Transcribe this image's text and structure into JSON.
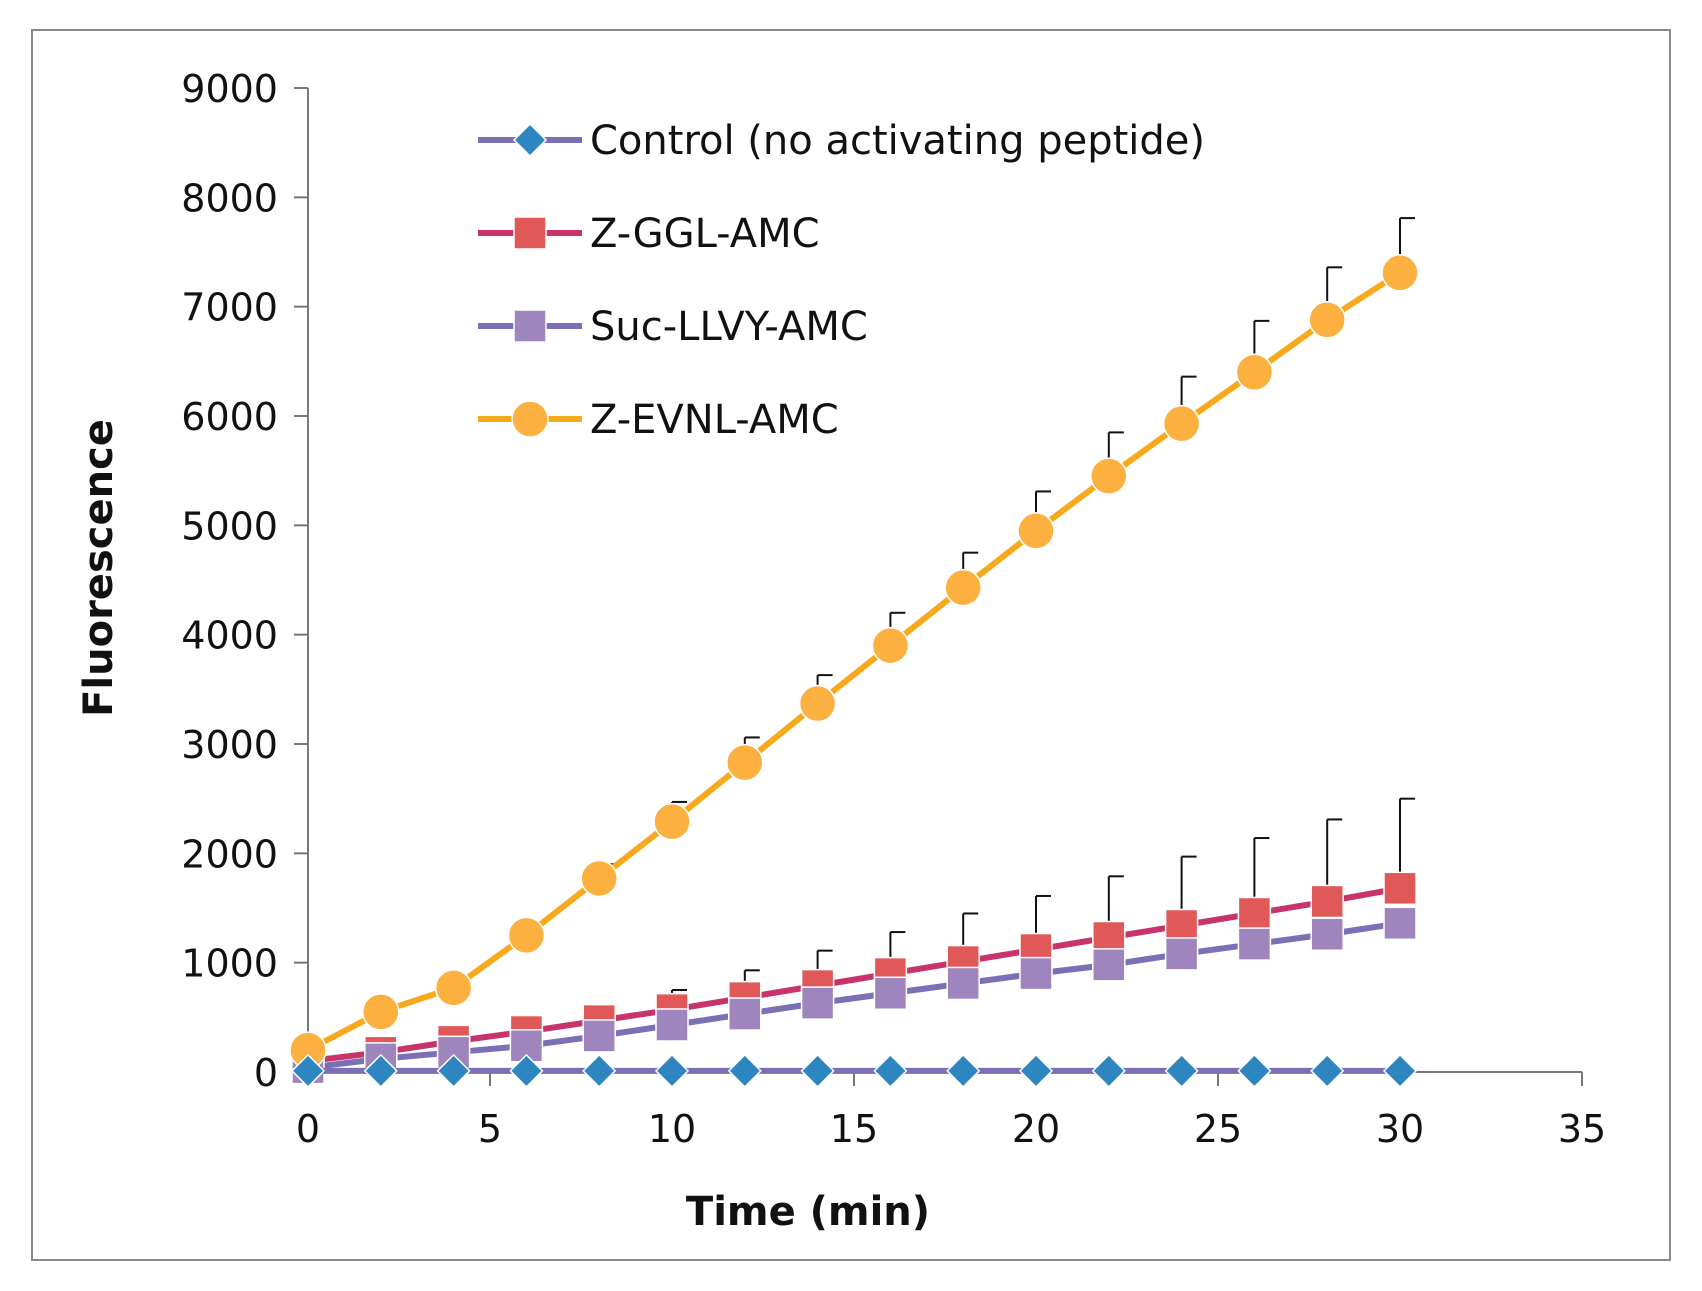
{
  "chart_data": {
    "type": "line",
    "title": "",
    "xlabel": "Time (min)",
    "ylabel": "Fluorescence",
    "xlim": [
      0,
      35
    ],
    "ylim": [
      0,
      9000
    ],
    "x_ticks": [
      0,
      5,
      10,
      15,
      20,
      25,
      30,
      35
    ],
    "y_ticks": [
      0,
      1000,
      2000,
      3000,
      4000,
      5000,
      6000,
      7000,
      8000,
      9000
    ],
    "x_tick_labels": [
      "0",
      "5",
      "10",
      "15",
      "20",
      "25",
      "30",
      "35"
    ],
    "y_tick_labels": [
      "0",
      "1000",
      "2000",
      "3000",
      "4000",
      "5000",
      "6000",
      "7000",
      "8000",
      "9000"
    ],
    "grid": false,
    "legend_position": "top-left inside",
    "x": [
      0,
      2,
      4,
      6,
      8,
      10,
      12,
      14,
      16,
      18,
      20,
      22,
      24,
      26,
      28,
      30
    ],
    "series": [
      {
        "name": "Control (no activating peptide)",
        "line_color": "#7B6FB5",
        "marker": "diamond",
        "marker_color": "#2E86C1",
        "values": [
          10,
          10,
          10,
          10,
          10,
          10,
          10,
          10,
          10,
          10,
          10,
          10,
          10,
          10,
          10,
          10
        ],
        "error": [
          0,
          0,
          0,
          0,
          0,
          0,
          0,
          0,
          0,
          0,
          0,
          0,
          0,
          0,
          0,
          0
        ]
      },
      {
        "name": "Z-GGL-AMC",
        "line_color": "#C8336B",
        "marker": "square",
        "marker_color": "#E05858",
        "values": [
          100,
          180,
          280,
          370,
          470,
          570,
          680,
          790,
          900,
          1010,
          1120,
          1230,
          1340,
          1450,
          1560,
          1680
        ],
        "error": [
          0,
          0,
          0,
          0,
          120,
          180,
          250,
          320,
          380,
          440,
          490,
          560,
          630,
          690,
          750,
          820
        ]
      },
      {
        "name": "Suc-LLVY-AMC",
        "line_color": "#7B6FB5",
        "marker": "square",
        "marker_color": "#9F85BD",
        "values": [
          40,
          120,
          180,
          240,
          330,
          430,
          530,
          630,
          720,
          810,
          900,
          980,
          1080,
          1170,
          1260,
          1360
        ],
        "error": [
          0,
          0,
          0,
          0,
          0,
          0,
          0,
          0,
          0,
          0,
          0,
          0,
          0,
          0,
          0,
          0
        ]
      },
      {
        "name": "Z-EVNL-AMC",
        "line_color": "#F7A81B",
        "marker": "circle",
        "marker_color": "#FBB040",
        "values": [
          200,
          550,
          770,
          1250,
          1770,
          2290,
          2830,
          3370,
          3900,
          4430,
          4950,
          5450,
          5930,
          6400,
          6880,
          7310
        ],
        "error": [
          0,
          0,
          0,
          0,
          130,
          180,
          230,
          260,
          300,
          320,
          360,
          400,
          430,
          470,
          480,
          500
        ]
      }
    ]
  }
}
